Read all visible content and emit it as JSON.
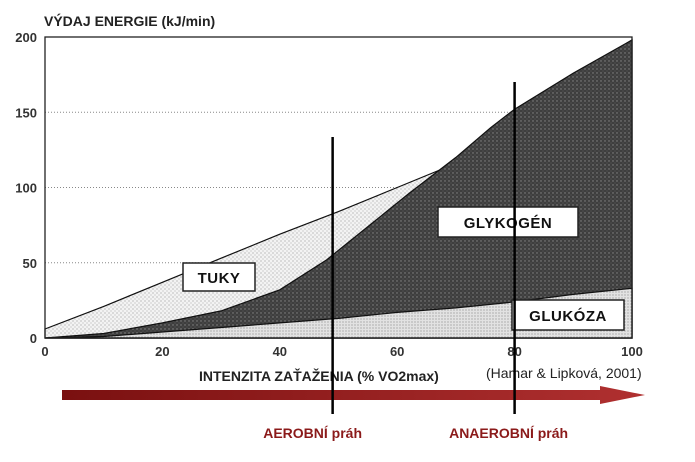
{
  "chart_data": {
    "type": "area",
    "title": "",
    "ylabel": "VÝDAJ ENERGIE (kJ/min)",
    "xlabel": "INTENZITA ZAŤAŽENIA (% VO2max)",
    "xlim": [
      0,
      100
    ],
    "ylim": [
      0,
      200
    ],
    "x_ticks": [
      0,
      20,
      40,
      60,
      80,
      100
    ],
    "y_ticks": [
      0,
      50,
      100,
      150,
      200
    ],
    "grid": "horizontal dotted",
    "series": [
      {
        "name": "GLUKÓZA",
        "points": [
          [
            0,
            0
          ],
          [
            10,
            1
          ],
          [
            20,
            4
          ],
          [
            30,
            7
          ],
          [
            40,
            10
          ],
          [
            50,
            13
          ],
          [
            60,
            17
          ],
          [
            70,
            20
          ],
          [
            80,
            24
          ],
          [
            90,
            29
          ],
          [
            100,
            33
          ]
        ],
        "color": "#d9d9d9"
      },
      {
        "name": "GLYKOGÉN",
        "points": [
          [
            0,
            0
          ],
          [
            10,
            3
          ],
          [
            20,
            10
          ],
          [
            30,
            18
          ],
          [
            40,
            32
          ],
          [
            48,
            52
          ],
          [
            55,
            74
          ],
          [
            62,
            96
          ],
          [
            70,
            120
          ],
          [
            76,
            140
          ],
          [
            80,
            152
          ],
          [
            90,
            176
          ],
          [
            100,
            198
          ]
        ],
        "color": "#4a4a4a"
      },
      {
        "name": "TUKY",
        "points": [
          [
            0,
            6
          ],
          [
            10,
            21
          ],
          [
            20,
            37
          ],
          [
            30,
            53
          ],
          [
            40,
            69
          ],
          [
            50,
            84
          ],
          [
            60,
            100
          ],
          [
            70,
            116
          ],
          [
            80,
            150
          ],
          [
            90,
            174
          ],
          [
            100,
            198
          ]
        ],
        "color": "#ebebeb"
      }
    ],
    "thresholds": [
      {
        "label": "AEROBNÍ práh",
        "x": 49
      },
      {
        "label": "ANAEROBNÍ práh",
        "x": 80
      }
    ],
    "source": "(Hamar & Lipková, 2001)",
    "arrow_color": "#8b1a1a"
  }
}
